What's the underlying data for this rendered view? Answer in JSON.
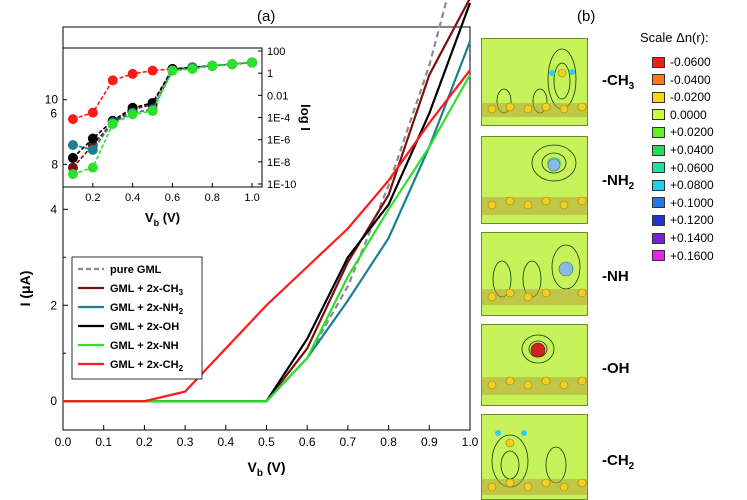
{
  "chart_data": [
    {
      "type": "line",
      "panel_label": "(a)",
      "xlabel": "V",
      "xlabel_sub": "b",
      "xlabel_unit": " (V)",
      "ylabel": "I (μA)",
      "xlim": [
        0.0,
        1.0
      ],
      "ylim": [
        -0.6,
        7.8
      ],
      "xticks": [
        "0.0",
        "0.1",
        "0.2",
        "0.3",
        "0.4",
        "0.5",
        "0.6",
        "0.7",
        "0.8",
        "0.9",
        "1.0"
      ],
      "yticks": [
        "0",
        "2",
        "4",
        "6"
      ],
      "legend_position": "lower-left",
      "series": [
        {
          "name": "pure GML",
          "color": "#8c8c8c",
          "dashed": true,
          "x": [
            0.0,
            0.5,
            0.6,
            0.7,
            0.8,
            0.9,
            1.0
          ],
          "y": [
            0,
            0,
            0.9,
            2.4,
            4.5,
            7.0,
            10.2
          ]
        },
        {
          "name": "GML + 2x-CH",
          "name_sub": "3",
          "color": "#7b1010",
          "x": [
            0.0,
            0.5,
            0.6,
            0.7,
            0.8,
            0.9,
            1.0
          ],
          "y": [
            0,
            0,
            1.1,
            2.9,
            4.3,
            6.8,
            8.4
          ]
        },
        {
          "name": "GML + 2x-NH",
          "name_sub": "2",
          "color": "#1a7f8e",
          "x": [
            0.0,
            0.5,
            0.6,
            0.7,
            0.8,
            0.9,
            1.0
          ],
          "y": [
            0,
            0,
            0.9,
            2.1,
            3.4,
            5.3,
            7.5
          ]
        },
        {
          "name": "GML + 2x-OH",
          "color": "#000000",
          "x": [
            0.0,
            0.5,
            0.6,
            0.7,
            0.8,
            0.9,
            1.0
          ],
          "y": [
            0,
            0,
            1.3,
            3.0,
            4.1,
            6.0,
            8.3
          ]
        },
        {
          "name": "GML + 2x-NH",
          "color": "#2ee02e",
          "x": [
            0.0,
            0.5,
            0.6,
            0.7,
            0.8,
            0.9,
            1.0
          ],
          "y": [
            0,
            0,
            0.9,
            2.6,
            4.0,
            5.3,
            6.8
          ]
        },
        {
          "name": "GML + 2x-CH",
          "name_sub": "2",
          "color": "#ff1a1a",
          "x": [
            0.0,
            0.2,
            0.3,
            0.4,
            0.5,
            0.6,
            0.7,
            0.8,
            0.9,
            1.0
          ],
          "y": [
            0,
            0,
            0.2,
            1.1,
            2.0,
            2.8,
            3.6,
            4.6,
            5.8,
            6.9
          ]
        }
      ]
    },
    {
      "type": "line",
      "subtype": "inset",
      "xlabel": "V",
      "xlabel_sub": "b",
      "xlabel_unit": " (V)",
      "ylabel_right": "log I",
      "xlim": [
        0.05,
        1.05
      ],
      "ylim_left": [
        7.3,
        11.6
      ],
      "xticks": [
        "0.2",
        "0.4",
        "0.6",
        "0.8",
        "1.0"
      ],
      "yticks_left": [
        "8",
        "10"
      ],
      "yticks_right": [
        "100",
        "1",
        "0.01",
        "1E-4",
        "1E-6",
        "1E-8",
        "1E-10"
      ],
      "series": [
        {
          "color": "#ff1a1a",
          "x": [
            0.1,
            0.2,
            0.3,
            0.4,
            0.5,
            0.6,
            0.7,
            0.8,
            0.9,
            1.0
          ],
          "y": [
            9.4,
            9.6,
            10.6,
            10.8,
            10.9,
            10.95,
            11.0,
            11.05,
            11.1,
            11.15
          ]
        },
        {
          "color": "#7b1010",
          "x": [
            0.1,
            0.2,
            0.3,
            0.4,
            0.5,
            0.6,
            0.7,
            0.8,
            0.9,
            1.0
          ],
          "y": [
            7.9,
            8.6,
            9.3,
            9.7,
            9.85,
            10.95,
            11.0,
            11.05,
            11.1,
            11.15
          ]
        },
        {
          "color": "#000000",
          "x": [
            0.1,
            0.2,
            0.3,
            0.4,
            0.5,
            0.6,
            0.7,
            0.8,
            0.9,
            1.0
          ],
          "y": [
            8.2,
            8.8,
            9.35,
            9.75,
            9.9,
            10.95,
            11.0,
            11.05,
            11.1,
            11.15
          ]
        },
        {
          "color": "#1a7f8e",
          "x": [
            0.1,
            0.2,
            0.3,
            0.4,
            0.5,
            0.6,
            0.7,
            0.8,
            0.9,
            1.0
          ],
          "y": [
            8.6,
            8.45,
            9.3,
            9.6,
            9.7,
            10.9,
            11.0,
            11.05,
            11.1,
            11.15
          ]
        },
        {
          "color": "#2ee02e",
          "x": [
            0.1,
            0.2,
            0.3,
            0.4,
            0.5,
            0.6,
            0.7,
            0.8,
            0.9,
            1.0
          ],
          "y": [
            7.7,
            7.9,
            9.25,
            9.55,
            9.65,
            10.9,
            10.95,
            11.05,
            11.1,
            11.15
          ]
        }
      ]
    }
  ],
  "panel_b": {
    "label": "(b)",
    "functional_groups": [
      {
        "text": "-CH",
        "sub": "3"
      },
      {
        "text": "-NH",
        "sub": "2"
      },
      {
        "text": "-NH",
        "sub": ""
      },
      {
        "text": "-OH",
        "sub": ""
      },
      {
        "text": "-CH",
        "sub": "2"
      }
    ],
    "scale_title": "Scale Δn(r):",
    "scale": [
      {
        "value": "-0.0600",
        "color": "#ff1a1a"
      },
      {
        "value": "-0.0400",
        "color": "#ff7a1a"
      },
      {
        "value": "-0.0200",
        "color": "#ffd21a"
      },
      {
        "value": "0.0000",
        "color": "#ccff33"
      },
      {
        "value": "+0.0200",
        "color": "#66ee22"
      },
      {
        "value": "+0.0400",
        "color": "#22dd55"
      },
      {
        "value": "+0.0600",
        "color": "#22e0a0"
      },
      {
        "value": "+0.0800",
        "color": "#22ccee"
      },
      {
        "value": "+0.1000",
        "color": "#2277ee"
      },
      {
        "value": "+0.1200",
        "color": "#2233cc"
      },
      {
        "value": "+0.1400",
        "color": "#7722cc"
      },
      {
        "value": "+0.1600",
        "color": "#ee22ee"
      }
    ]
  }
}
